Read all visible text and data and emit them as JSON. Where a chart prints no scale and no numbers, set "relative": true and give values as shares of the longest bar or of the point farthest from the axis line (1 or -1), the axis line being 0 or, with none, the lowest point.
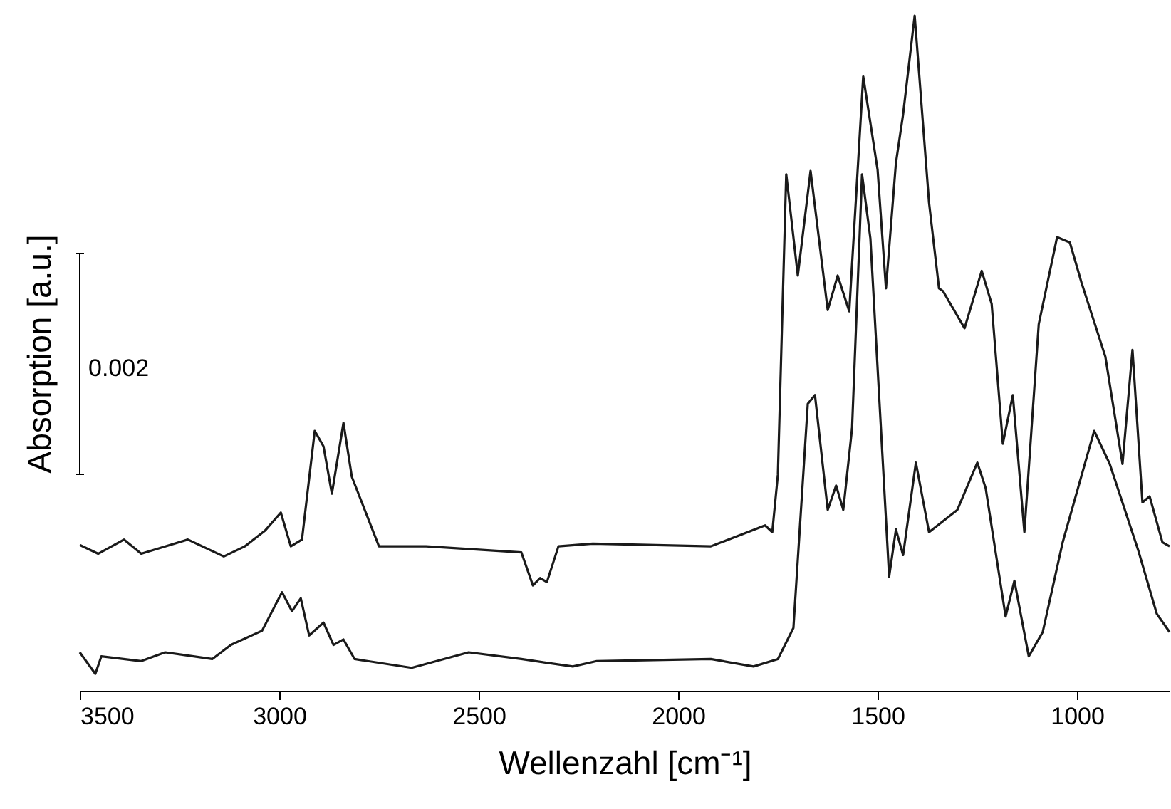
{
  "chart_data": {
    "type": "line",
    "relative": true,
    "xlabel": "Wellenzahl [cm⁻¹]",
    "ylabel": "Absorption [a.u.]",
    "annotations": [
      "0.002"
    ],
    "xlim": [
      3500,
      768
    ],
    "xticks": [
      3500,
      3000,
      2500,
      2000,
      1500,
      1000
    ],
    "grid": false,
    "tick_labels": "x",
    "line_style": "solid",
    "marker": "none",
    "series": [
      {
        "color": "#1a1a1a",
        "x": [
          3500,
          3454,
          3389,
          3346,
          3229,
          3139,
          3086,
          3036,
          2996,
          2971,
          2943,
          2911,
          2889,
          2868,
          2839,
          2818,
          2750,
          2632,
          2393,
          2364,
          2346,
          2329,
          2300,
          2214,
          1918,
          1782,
          1764,
          1750,
          1729,
          1700,
          1668,
          1625,
          1600,
          1571,
          1536,
          1500,
          1479,
          1454,
          1436,
          1407,
          1371,
          1346,
          1336,
          1282,
          1239,
          1214,
          1186,
          1161,
          1132,
          1096,
          1050,
          1018,
          989,
          929,
          886,
          861,
          836,
          818,
          786,
          768
        ],
        "values": [
          0.216,
          0.203,
          0.224,
          0.203,
          0.224,
          0.199,
          0.214,
          0.237,
          0.264,
          0.214,
          0.224,
          0.385,
          0.362,
          0.292,
          0.397,
          0.317,
          0.214,
          0.214,
          0.205,
          0.156,
          0.167,
          0.161,
          0.214,
          0.218,
          0.214,
          0.245,
          0.235,
          0.32,
          0.765,
          0.615,
          0.77,
          0.564,
          0.615,
          0.562,
          0.91,
          0.772,
          0.596,
          0.782,
          0.854,
          1.0,
          0.723,
          0.596,
          0.592,
          0.537,
          0.622,
          0.573,
          0.366,
          0.438,
          0.235,
          0.543,
          0.672,
          0.664,
          0.605,
          0.495,
          0.336,
          0.505,
          0.279,
          0.288,
          0.22,
          0.214
        ]
      },
      {
        "color": "#1a1a1a",
        "x": [
          3500,
          3461,
          3446,
          3346,
          3286,
          3168,
          3121,
          3043,
          2993,
          2968,
          2946,
          2925,
          2889,
          2864,
          2839,
          2811,
          2668,
          2525,
          2393,
          2264,
          2204,
          1918,
          1811,
          1750,
          1711,
          1675,
          1657,
          1625,
          1604,
          1586,
          1564,
          1539,
          1518,
          1471,
          1454,
          1436,
          1404,
          1371,
          1300,
          1250,
          1229,
          1179,
          1157,
          1121,
          1086,
          1036,
          957,
          918,
          846,
          800,
          768
        ],
        "values": [
          0.057,
          0.025,
          0.051,
          0.044,
          0.057,
          0.047,
          0.068,
          0.089,
          0.146,
          0.118,
          0.137,
          0.082,
          0.101,
          0.068,
          0.076,
          0.047,
          0.034,
          0.057,
          0.047,
          0.036,
          0.044,
          0.047,
          0.036,
          0.047,
          0.093,
          0.425,
          0.438,
          0.268,
          0.304,
          0.268,
          0.389,
          0.765,
          0.67,
          0.169,
          0.239,
          0.201,
          0.338,
          0.235,
          0.268,
          0.338,
          0.3,
          0.11,
          0.163,
          0.051,
          0.087,
          0.22,
          0.385,
          0.336,
          0.207,
          0.114,
          0.087
        ]
      }
    ]
  }
}
